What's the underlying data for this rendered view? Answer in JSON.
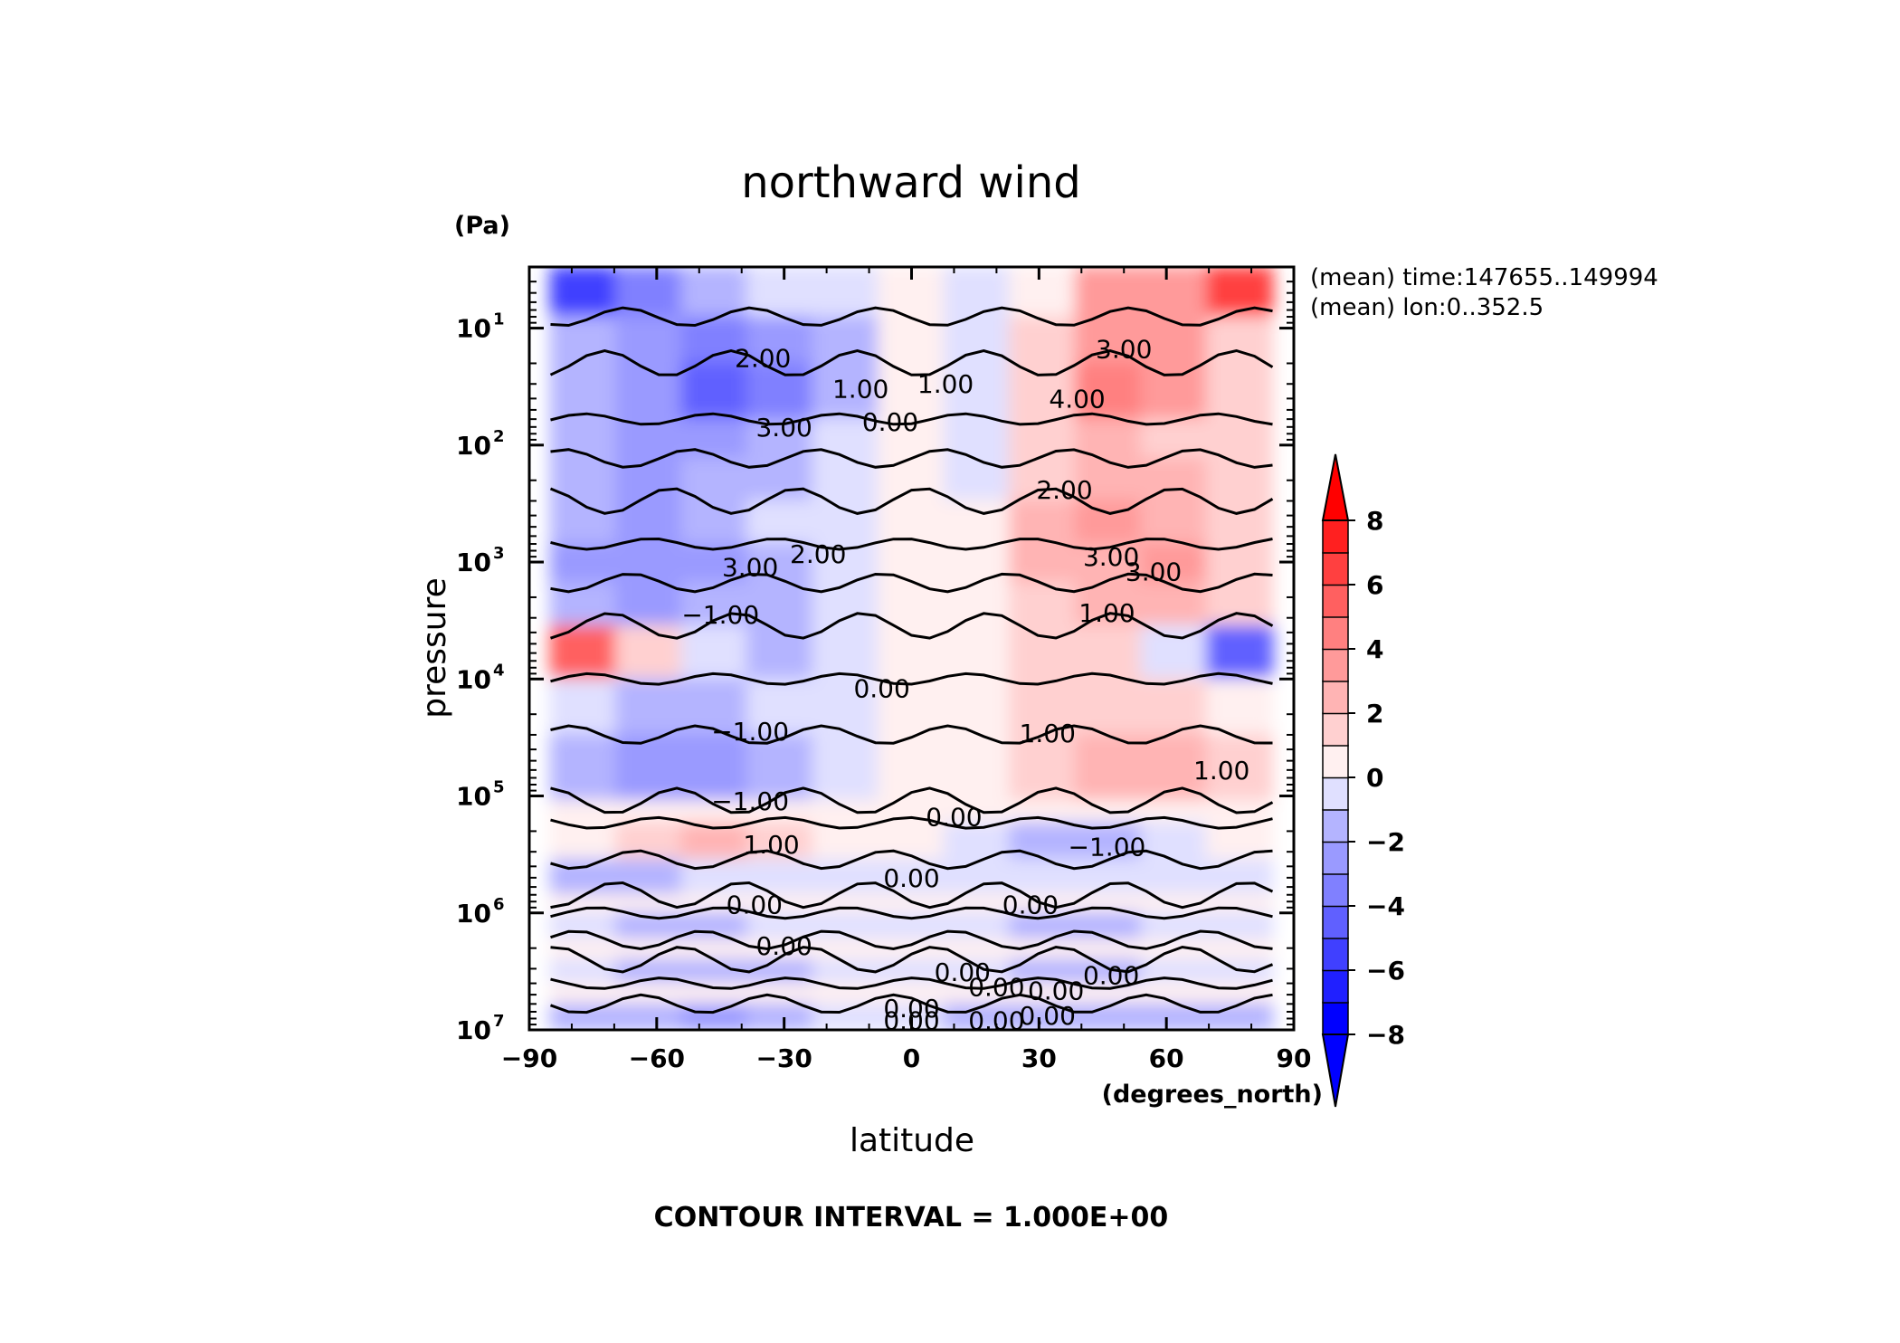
{
  "chart_data": {
    "type": "heatmap",
    "title": "northward wind",
    "xlabel": "latitude",
    "ylabel": "pressure",
    "x_units": "(degrees_north)",
    "y_units": "(Pa)",
    "xlim": [
      -90,
      90
    ],
    "ylim": [
      10000000,
      3
    ],
    "y_scale": "log",
    "x_ticks": [
      -90,
      -60,
      -30,
      0,
      30,
      60,
      90
    ],
    "x_tick_labels": [
      "−90",
      "−60",
      "−30",
      "0",
      "30",
      "60",
      "90"
    ],
    "y_ticks": [
      10,
      100,
      1000,
      10000,
      100000,
      1000000,
      10000000
    ],
    "y_tick_bases": [
      "10",
      "10",
      "10",
      "10",
      "10",
      "10",
      "10"
    ],
    "y_tick_exponents": [
      "1",
      "2",
      "3",
      "4",
      "5",
      "6",
      "7"
    ],
    "info_lines": [
      "(mean) time:147655..149994",
      "(mean) lon:0..352.5"
    ],
    "contour_note": "CONTOUR INTERVAL = 1.000E+00",
    "colorbar": {
      "min": -8,
      "max": 8,
      "levels": [
        -8,
        -7,
        -6,
        -5,
        -4,
        -3,
        -2,
        -1,
        0,
        1,
        2,
        3,
        4,
        5,
        6,
        7,
        8
      ],
      "tick_values": [
        8,
        6,
        4,
        2,
        0,
        -2,
        -4,
        -6,
        -8
      ],
      "tick_labels": [
        "8",
        "6",
        "4",
        "2",
        "0",
        "−2",
        "−4",
        "−6",
        "−8"
      ],
      "extend": "both",
      "colors_low_to_high": [
        "#0000ff",
        "#2020ff",
        "#4040ff",
        "#6060ff",
        "#8080ff",
        "#9a9aff",
        "#b4b4ff",
        "#e0e0ff",
        "#fff0f0",
        "#ffd0d0",
        "#ffb4b4",
        "#ff9a9a",
        "#ff8080",
        "#ff6060",
        "#ff4040",
        "#ff2020"
      ],
      "under_color": "#0000ff",
      "over_color": "#ff0000"
    },
    "contour_labels": [
      {
        "text": "2.00",
        "lat": -35,
        "p": 18
      },
      {
        "text": "1.00",
        "lat": -12,
        "p": 33
      },
      {
        "text": "3.00",
        "lat": -30,
        "p": 70
      },
      {
        "text": "0.00",
        "lat": -5,
        "p": 63
      },
      {
        "text": "1.00",
        "lat": 8,
        "p": 30
      },
      {
        "text": "3.00",
        "lat": 50,
        "p": 15
      },
      {
        "text": "4.00",
        "lat": 39,
        "p": 40
      },
      {
        "text": "2.00",
        "lat": 36,
        "p": 240
      },
      {
        "text": "3.00",
        "lat": -38,
        "p": 1100
      },
      {
        "text": "2.00",
        "lat": -22,
        "p": 850
      },
      {
        "text": "3.00",
        "lat": 47,
        "p": 900
      },
      {
        "text": "3.00",
        "lat": 57,
        "p": 1200
      },
      {
        "text": "−1.00",
        "lat": -45,
        "p": 2800
      },
      {
        "text": "1.00",
        "lat": 46,
        "p": 2700
      },
      {
        "text": "0.00",
        "lat": -7,
        "p": 12000
      },
      {
        "text": "−1.00",
        "lat": -38,
        "p": 28000
      },
      {
        "text": "1.00",
        "lat": 32,
        "p": 29000
      },
      {
        "text": "1.00",
        "lat": 73,
        "p": 60000
      },
      {
        "text": "−1.00",
        "lat": -38,
        "p": 110000
      },
      {
        "text": "1.00",
        "lat": -33,
        "p": 260000
      },
      {
        "text": "0.00",
        "lat": 10,
        "p": 150000
      },
      {
        "text": "−1.00",
        "lat": 46,
        "p": 270000
      },
      {
        "text": "0.00",
        "lat": 0,
        "p": 500000
      },
      {
        "text": "0.00",
        "lat": -37,
        "p": 850000
      },
      {
        "text": "0.00",
        "lat": 28,
        "p": 850000
      },
      {
        "text": "0.00",
        "lat": -30,
        "p": 1900000
      },
      {
        "text": "0.00",
        "lat": 12,
        "p": 3200000
      },
      {
        "text": "0.00",
        "lat": 20,
        "p": 4300000
      },
      {
        "text": "0.00",
        "lat": 34,
        "p": 4600000
      },
      {
        "text": "0.00",
        "lat": 47,
        "p": 3400000
      },
      {
        "text": "0.00",
        "lat": 0,
        "p": 6500000
      },
      {
        "text": "0.00",
        "lat": 0,
        "p": 8300000
      },
      {
        "text": "0.00",
        "lat": 20,
        "p": 8300000
      },
      {
        "text": "0.00",
        "lat": 32,
        "p": 7500000
      }
    ],
    "bands": [
      {
        "p_top": 3,
        "p_bot": 8,
        "values": [
          -6,
          -4,
          -2,
          -1,
          -1,
          0.3,
          -0.5,
          0.3,
          3,
          3,
          6
        ]
      },
      {
        "p_top": 8,
        "p_bot": 20,
        "values": [
          -2,
          -3,
          -3.5,
          -3,
          -1.5,
          0.3,
          -0.5,
          1,
          3.5,
          3,
          1
        ]
      },
      {
        "p_top": 20,
        "p_bot": 60,
        "values": [
          -2,
          -3,
          -4.5,
          -4,
          -1.5,
          0.3,
          -0.5,
          1.5,
          4.5,
          3.5,
          1.5
        ]
      },
      {
        "p_top": 60,
        "p_bot": 130,
        "values": [
          -1.5,
          -2.5,
          -2.5,
          -1.5,
          -1,
          0.3,
          -1,
          1.5,
          2,
          1.5,
          1
        ]
      },
      {
        "p_top": 130,
        "p_bot": 300,
        "values": [
          -1.5,
          -3,
          -2,
          -1.5,
          -1,
          0.3,
          -1,
          1.5,
          2,
          2.5,
          1
        ]
      },
      {
        "p_top": 300,
        "p_bot": 700,
        "values": [
          -2,
          -2.5,
          -1.5,
          -1,
          -1,
          0.3,
          0.3,
          2,
          3,
          2,
          1.5
        ]
      },
      {
        "p_top": 700,
        "p_bot": 1500,
        "values": [
          -3,
          -2.5,
          -3,
          -2,
          -1,
          0.3,
          0.3,
          2,
          2.5,
          3,
          1.5
        ]
      },
      {
        "p_top": 1500,
        "p_bot": 3500,
        "values": [
          -1.5,
          -2.5,
          -2,
          -1.5,
          -1,
          0.3,
          0.3,
          1.5,
          2,
          2.5,
          1
        ]
      },
      {
        "p_top": 3500,
        "p_bot": 10000,
        "values": [
          5,
          1,
          -1,
          -1.5,
          -1,
          0.3,
          0.3,
          1,
          1,
          -1,
          -5
        ]
      },
      {
        "p_top": 10000,
        "p_bot": 30000,
        "values": [
          -1,
          -1.5,
          -1.5,
          -1,
          -1,
          0.3,
          0.3,
          1,
          1.5,
          1,
          0.3
        ]
      },
      {
        "p_top": 30000,
        "p_bot": 110000,
        "values": [
          -1.5,
          -3,
          -2.5,
          -1.5,
          -1,
          0.3,
          0.3,
          1.5,
          2.5,
          2,
          1
        ]
      },
      {
        "p_top": 110000,
        "p_bot": 170000,
        "values": [
          0.3,
          0.3,
          0.3,
          0.3,
          0.3,
          0.3,
          0.3,
          0.3,
          0.3,
          0.3,
          0.3
        ]
      },
      {
        "p_top": 170000,
        "p_bot": 350000,
        "values": [
          0.3,
          1.5,
          2,
          1,
          0.3,
          0.3,
          -1,
          -1.5,
          -1.5,
          -1,
          0.3
        ]
      },
      {
        "p_top": 350000,
        "p_bot": 700000,
        "values": [
          -1.5,
          -1.5,
          -1,
          -1,
          -1,
          -1,
          -1,
          -1,
          -1,
          -1,
          -1
        ]
      },
      {
        "p_top": 700000,
        "p_bot": 1000000,
        "values": [
          0.3,
          0.3,
          0.3,
          0.3,
          0.3,
          0.3,
          0.3,
          0.3,
          0.3,
          0.3,
          0.3
        ]
      },
      {
        "p_top": 1000000,
        "p_bot": 1700000,
        "values": [
          -1,
          -1.5,
          -1.5,
          -1,
          -1,
          -1,
          -1,
          -1.5,
          -1.5,
          -1,
          -1
        ]
      },
      {
        "p_top": 1700000,
        "p_bot": 2500000,
        "values": [
          0.3,
          0.3,
          0.3,
          0.3,
          0.3,
          0.3,
          0.3,
          0.3,
          0.3,
          0.3,
          0.3
        ]
      },
      {
        "p_top": 2500000,
        "p_bot": 4000000,
        "values": [
          -1,
          -1.5,
          -2,
          -1.5,
          -1,
          -1,
          -1,
          -1.5,
          -1.5,
          -1,
          -1
        ]
      },
      {
        "p_top": 4000000,
        "p_bot": 6000000,
        "values": [
          0.3,
          0.3,
          0.3,
          0.3,
          0.3,
          0.3,
          0.3,
          0.3,
          0.3,
          0.3,
          0.3
        ]
      },
      {
        "p_top": 6000000,
        "p_bot": 10000000,
        "values": [
          -1.5,
          -2,
          -2.5,
          -2,
          -1,
          -1,
          -1.5,
          -2,
          -2,
          -1.5,
          -1.5
        ]
      }
    ]
  }
}
